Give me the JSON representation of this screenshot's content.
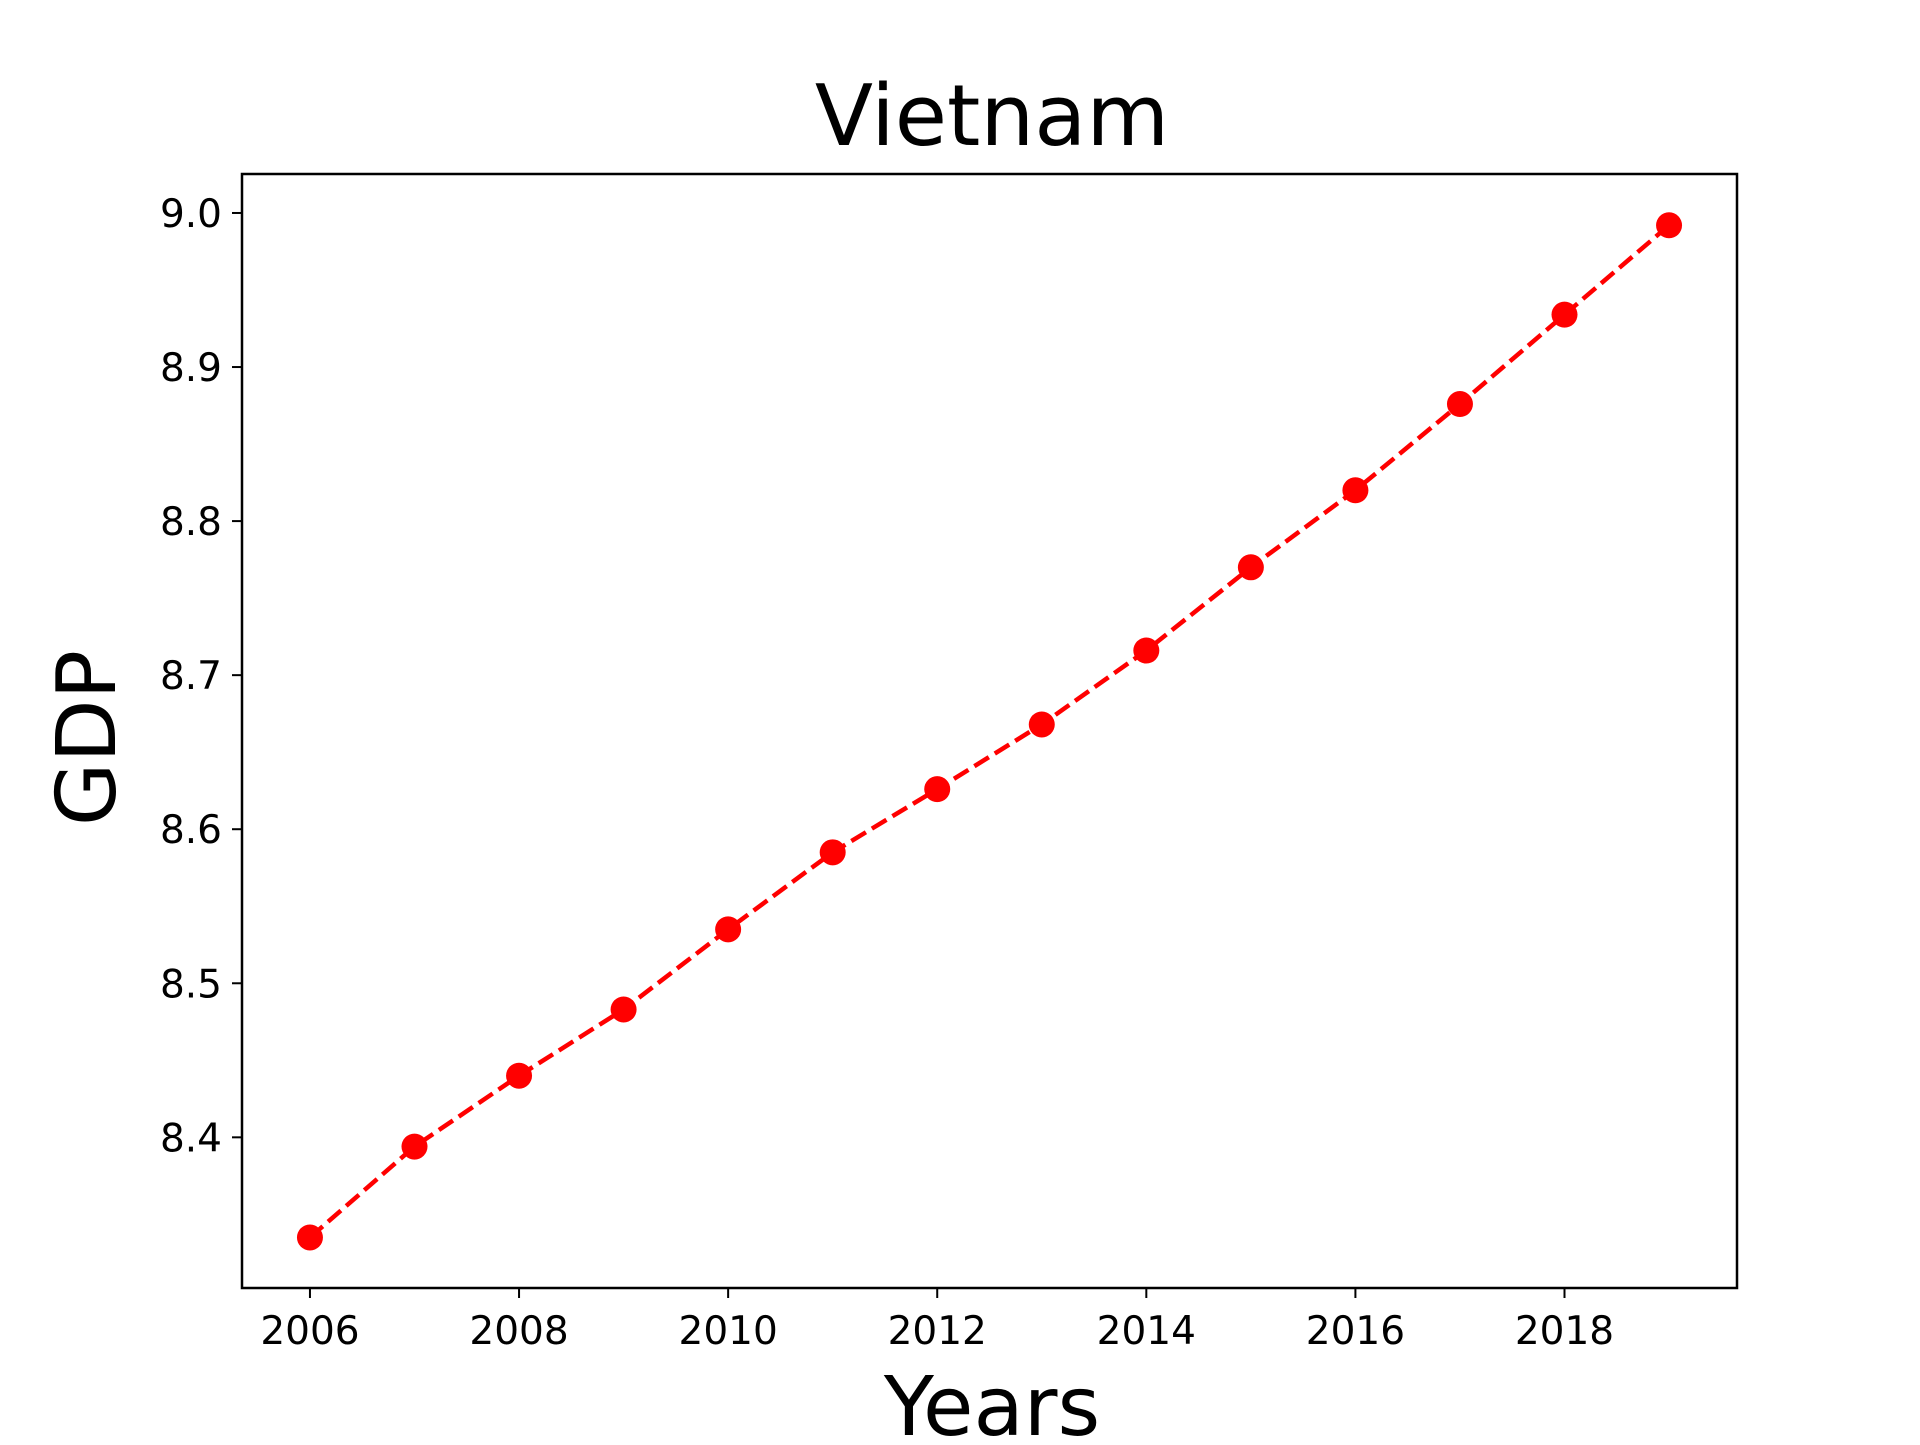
{
  "chart_data": {
    "type": "line",
    "title": "Vietnam",
    "xlabel": "Years",
    "ylabel": "GDP",
    "x": [
      2006,
      2007,
      2008,
      2009,
      2010,
      2011,
      2012,
      2013,
      2014,
      2015,
      2016,
      2017,
      2018,
      2019
    ],
    "series": [
      {
        "values": [
          8.335,
          8.394,
          8.44,
          8.483,
          8.535,
          8.585,
          8.626,
          8.668,
          8.716,
          8.77,
          8.82,
          8.876,
          8.934,
          8.992
        ]
      }
    ],
    "xticks": [
      "2006",
      "2008",
      "2010",
      "2012",
      "2014",
      "2016",
      "2018"
    ],
    "yticks": [
      "8.4",
      "8.5",
      "8.6",
      "8.7",
      "8.8",
      "8.9",
      "9.0"
    ],
    "xlim": [
      2005.35,
      2019.65
    ],
    "ylim": [
      8.3022,
      9.0253
    ],
    "line_style": "dashed",
    "marker": "circle",
    "color": "#ff0000",
    "grid": false,
    "legend": "none"
  }
}
